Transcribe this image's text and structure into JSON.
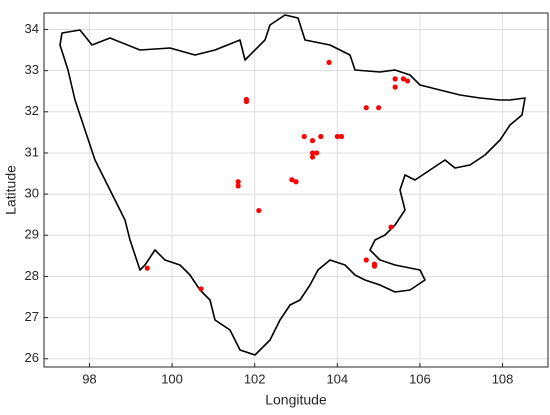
{
  "chart_data": {
    "type": "scatter",
    "x_label": "Longitude",
    "y_label": "Latitude",
    "xlim": [
      96.9,
      109.1
    ],
    "ylim": [
      25.8,
      34.4
    ],
    "xticks": [
      98,
      100,
      102,
      104,
      106,
      108
    ],
    "yticks": [
      26,
      27,
      28,
      29,
      30,
      31,
      32,
      33,
      34
    ],
    "grid": true,
    "series": [
      {
        "color": "#ff0000",
        "x": [
          99.4,
          100.7,
          101.6,
          101.6,
          101.8,
          101.8,
          102.1,
          102.9,
          103.0,
          103.2,
          103.4,
          103.6,
          103.4,
          103.5,
          103.4,
          103.8,
          104.0,
          104.1,
          104.7,
          105.0,
          105.4,
          105.4,
          105.6,
          105.7,
          105.3,
          104.7,
          104.9,
          104.9
        ],
        "values": [
          28.2,
          27.7,
          30.3,
          30.2,
          32.3,
          32.25,
          29.6,
          30.35,
          30.3,
          31.4,
          31.3,
          31.4,
          31.0,
          31.0,
          30.9,
          33.2,
          31.4,
          31.4,
          32.1,
          32.1,
          32.6,
          32.8,
          32.8,
          32.75,
          29.2,
          28.4,
          28.3,
          28.25
        ]
      }
    ]
  }
}
